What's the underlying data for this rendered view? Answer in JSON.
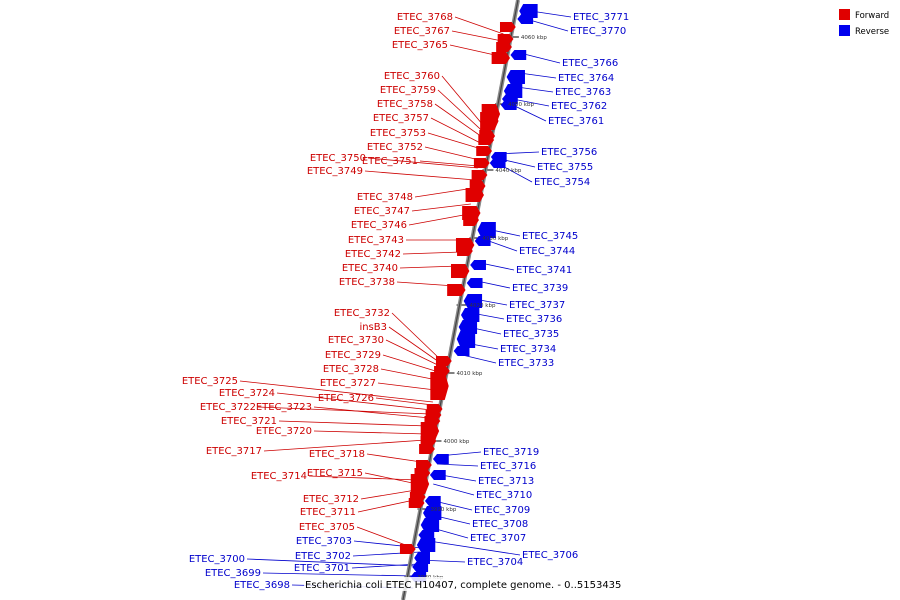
{
  "caption": "Escherichia coli ETEC H10407, complete genome. - 0..5153435",
  "legend": [
    {
      "label": "Forward",
      "color": "#e00000"
    },
    {
      "label": "Reverse",
      "color": "#0000ee"
    }
  ],
  "ticks": [
    "4060 kbp",
    "4050 kbp",
    "4040 kbp",
    "4030 kbp",
    "4020 kbp",
    "4010 kbp",
    "4000 kbp",
    "3990 kbp",
    "3980 kbp"
  ],
  "forward_genes": [
    "ETEC_3768",
    "ETEC_3767",
    "ETEC_3765",
    "ETEC_3760",
    "ETEC_3759",
    "ETEC_3758",
    "ETEC_3757",
    "ETEC_3753",
    "ETEC_3752",
    "ETEC_3750",
    "ETEC_3751",
    "ETEC_3749",
    "ETEC_3748",
    "ETEC_3747",
    "ETEC_3746",
    "ETEC_3743",
    "ETEC_3742",
    "ETEC_3740",
    "ETEC_3738",
    "ETEC_3732",
    "insB3",
    "ETEC_3730",
    "ETEC_3729",
    "ETEC_3728",
    "ETEC_3727",
    "ETEC_3726",
    "ETEC_3725",
    "ETEC_3724",
    "ETEC_3722",
    "ETEC_3723",
    "ETEC_3721",
    "ETEC_3720",
    "ETEC_3717",
    "ETEC_3718",
    "ETEC_3714",
    "ETEC_3715",
    "ETEC_3712",
    "ETEC_3711",
    "ETEC_3705"
  ],
  "reverse_genes": [
    "ETEC_3771",
    "ETEC_3770",
    "ETEC_3766",
    "ETEC_3764",
    "ETEC_3763",
    "ETEC_3762",
    "ETEC_3761",
    "ETEC_3756",
    "ETEC_3755",
    "ETEC_3754",
    "ETEC_3745",
    "ETEC_3744",
    "ETEC_3741",
    "ETEC_3739",
    "ETEC_3737",
    "ETEC_3736",
    "ETEC_3735",
    "ETEC_3734",
    "ETEC_3733",
    "ETEC_3719",
    "ETEC_3716",
    "ETEC_3713",
    "ETEC_3710",
    "ETEC_3709",
    "ETEC_3708",
    "ETEC_3707",
    "ETEC_3706",
    "ETEC_3704",
    "ETEC_3703",
    "ETEC_3702",
    "ETEC_3701",
    "ETEC_3700",
    "ETEC_3699",
    "ETEC_3698"
  ]
}
